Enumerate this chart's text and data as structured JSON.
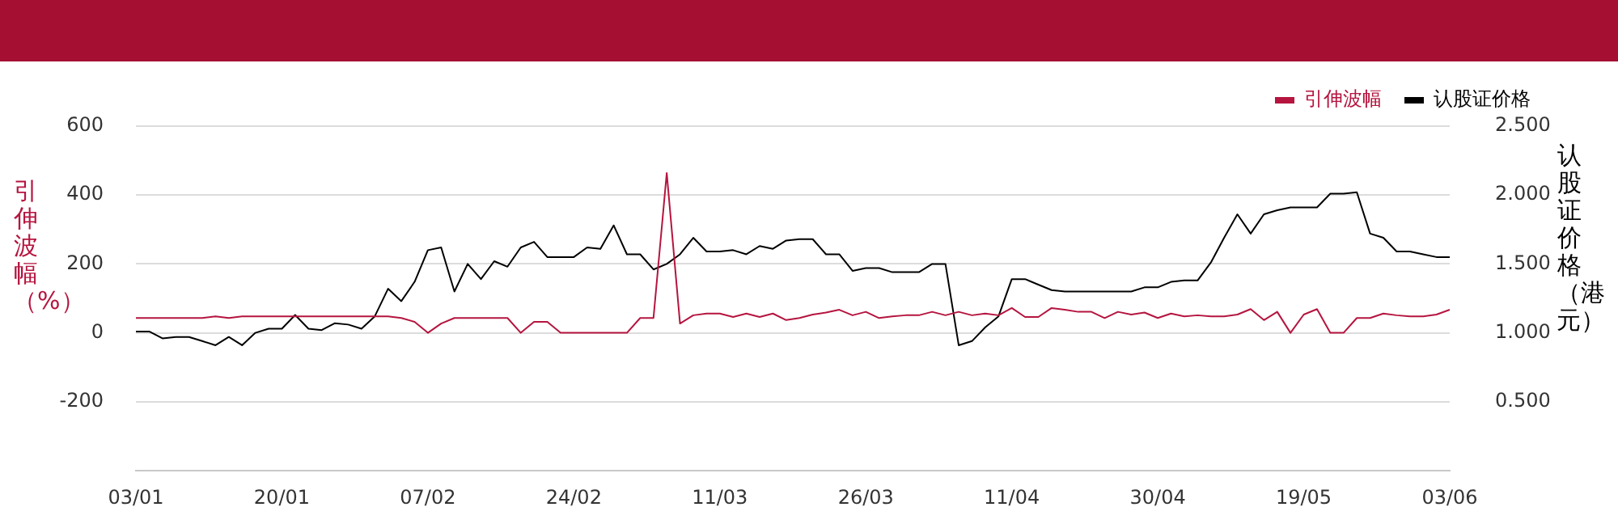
{
  "chart_data": {
    "type": "line",
    "categories": [
      "03/01",
      null,
      null,
      null,
      null,
      null,
      null,
      null,
      null,
      null,
      null,
      "20/01",
      null,
      null,
      null,
      null,
      null,
      null,
      null,
      null,
      null,
      null,
      "07/02",
      null,
      null,
      null,
      null,
      null,
      null,
      null,
      null,
      null,
      null,
      "24/02",
      null,
      null,
      null,
      null,
      null,
      null,
      null,
      null,
      null,
      null,
      "11/03",
      null,
      null,
      null,
      null,
      null,
      null,
      null,
      null,
      null,
      null,
      "26/03",
      null,
      null,
      null,
      null,
      null,
      null,
      null,
      null,
      null,
      null,
      "11/04",
      null,
      null,
      null,
      null,
      null,
      null,
      null,
      null,
      null,
      null,
      "30/04",
      null,
      null,
      null,
      null,
      null,
      null,
      null,
      null,
      null,
      null,
      "19/05",
      null,
      null,
      null,
      null,
      null,
      null,
      null,
      null,
      null,
      null,
      "03/06"
    ],
    "series": [
      {
        "name": "引伸波幅",
        "color": "#b5153f",
        "values": [
          43,
          43,
          43,
          43,
          43,
          43,
          48,
          43,
          48,
          48,
          48,
          48,
          48,
          48,
          48,
          48,
          48,
          48,
          48,
          48,
          43,
          32,
          0,
          27,
          43,
          43,
          43,
          43,
          43,
          0,
          32,
          32,
          0,
          0,
          0,
          0,
          0,
          0,
          43,
          43,
          464,
          27,
          51,
          56,
          56,
          46,
          56,
          46,
          56,
          37,
          43,
          53,
          59,
          67,
          51,
          61,
          43,
          48,
          51,
          51,
          61,
          51,
          61,
          51,
          56,
          51,
          72,
          46,
          46,
          72,
          67,
          61,
          61,
          43,
          61,
          53,
          59,
          43,
          56,
          48,
          51,
          48,
          48,
          53,
          69,
          37,
          61,
          0,
          53,
          69,
          0,
          0,
          43,
          43,
          56,
          51,
          48,
          48,
          53,
          67
        ]
      },
      {
        "name": "认股证价格",
        "color": "#000000",
        "axis": "y2",
        "values": [
          1.01,
          1.01,
          0.96,
          0.97,
          0.97,
          0.94,
          0.91,
          0.97,
          0.91,
          1.0,
          1.03,
          1.03,
          1.13,
          1.03,
          1.02,
          1.07,
          1.06,
          1.03,
          1.12,
          1.32,
          1.23,
          1.37,
          1.6,
          1.62,
          1.3,
          1.5,
          1.39,
          1.52,
          1.48,
          1.62,
          1.66,
          1.55,
          1.55,
          1.55,
          1.62,
          1.61,
          1.78,
          1.57,
          1.57,
          1.46,
          1.5,
          1.57,
          1.69,
          1.59,
          1.59,
          1.6,
          1.57,
          1.63,
          1.61,
          1.67,
          1.68,
          1.68,
          1.57,
          1.57,
          1.45,
          1.47,
          1.47,
          1.44,
          1.44,
          1.44,
          1.5,
          1.5,
          0.91,
          0.94,
          1.04,
          1.12,
          1.39,
          1.39,
          1.35,
          1.31,
          1.3,
          1.3,
          1.3,
          1.3,
          1.3,
          1.3,
          1.33,
          1.33,
          1.37,
          1.38,
          1.38,
          1.51,
          1.69,
          1.86,
          1.72,
          1.86,
          1.89,
          1.91,
          1.91,
          1.91,
          2.01,
          2.01,
          2.02,
          1.72,
          1.69,
          1.59,
          1.59,
          1.57,
          1.55,
          1.55
        ]
      }
    ],
    "ylabel": "引伸波幅（%）",
    "y2label": "认股证价格（港元）",
    "ylim": [
      -400,
      600
    ],
    "yticks": [
      -200,
      0,
      200,
      400,
      600
    ],
    "y2lim": [
      0,
      2.5
    ],
    "y2ticks": [
      {
        "value": 0.5,
        "label": "0.500"
      },
      {
        "value": 1,
        "label": "1.000"
      },
      {
        "value": 1.5,
        "label": "1.500"
      },
      {
        "value": 2,
        "label": "2.000"
      },
      {
        "value": 2.5,
        "label": "2.500"
      }
    ],
    "grid": "y",
    "legend": "top right"
  }
}
